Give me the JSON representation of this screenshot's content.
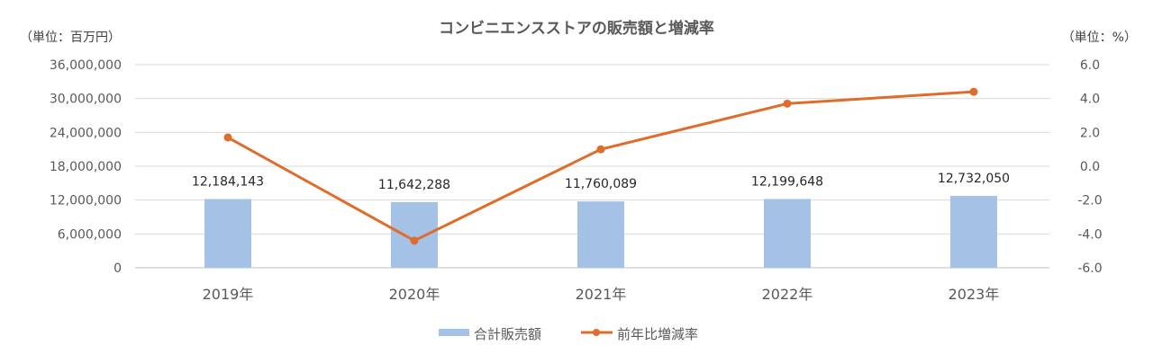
{
  "chart_data": {
    "type": "bar+line",
    "title": "コンビニエンスストアの販売額と増減率",
    "left_unit_label": "（単位：百万円）",
    "right_unit_label": "（単位：%）",
    "categories": [
      "2019年",
      "2020年",
      "2021年",
      "2022年",
      "2023年"
    ],
    "left_axis": {
      "min": 0,
      "max": 36000000,
      "ticks": [
        "0",
        "6,000,000",
        "12,000,000",
        "18,000,000",
        "24,000,000",
        "30,000,000",
        "36,000,000"
      ]
    },
    "right_axis": {
      "min": -6,
      "max": 6,
      "ticks": [
        "-6.0",
        "-4.0",
        "-2.0",
        "0.0",
        "2.0",
        "4.0",
        "6.0"
      ]
    },
    "grid": true,
    "legend_position": "bottom",
    "series": [
      {
        "name": "合計販売額",
        "type": "bar",
        "axis": "left",
        "color": "#a4c2e6",
        "values": [
          12184143,
          11642288,
          11760089,
          12199648,
          12732050
        ],
        "labels": [
          "12,184,143",
          "11,642,288",
          "11,760,089",
          "12,199,648",
          "12,732,050"
        ]
      },
      {
        "name": "前年比増減率",
        "type": "line",
        "axis": "right",
        "color": "#e06c2c",
        "values": [
          1.7,
          -4.4,
          1.0,
          3.7,
          4.4
        ]
      }
    ]
  }
}
